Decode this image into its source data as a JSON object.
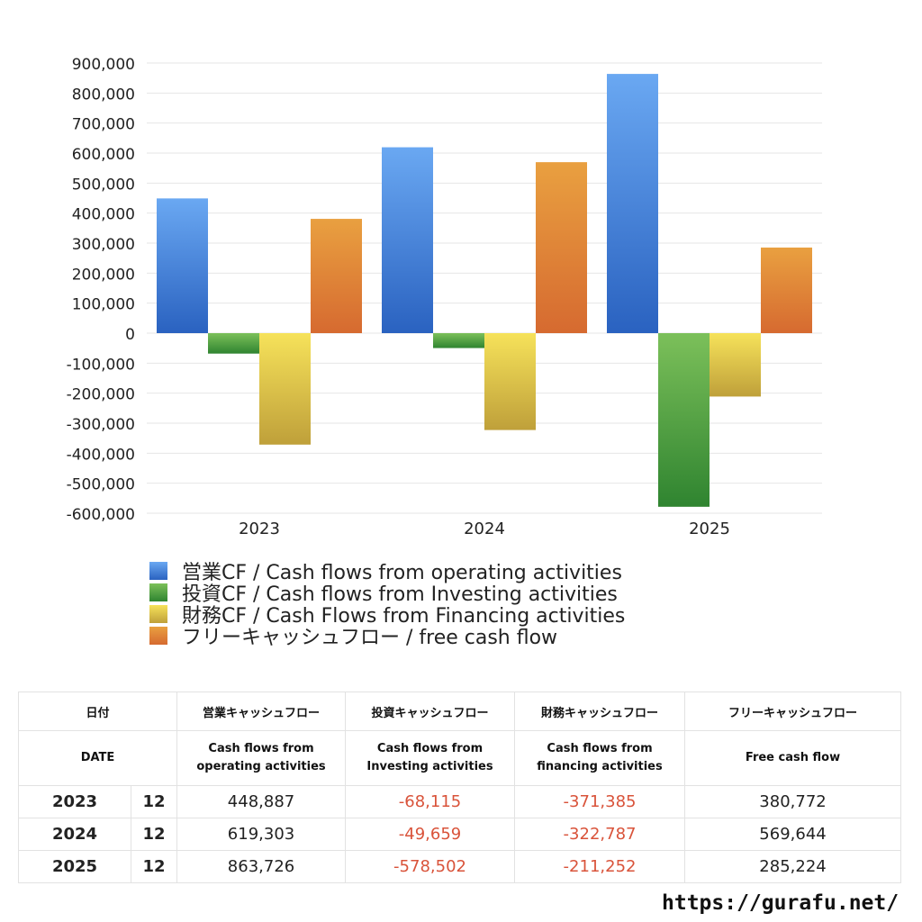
{
  "chart_data": {
    "type": "bar",
    "title": "",
    "xlabel": "",
    "ylabel": "",
    "categories": [
      "2023",
      "2024",
      "2025"
    ],
    "ylim": [
      -600000,
      900000
    ],
    "yticks": [
      900000,
      800000,
      700000,
      600000,
      500000,
      400000,
      300000,
      200000,
      100000,
      0,
      -100000,
      -200000,
      -300000,
      -400000,
      -500000,
      -600000
    ],
    "ytick_labels": [
      "900,000",
      "800,000",
      "700,000",
      "600,000",
      "500,000",
      "400,000",
      "300,000",
      "200,000",
      "100,000",
      "0",
      "-100,000",
      "-200,000",
      "-300,000",
      "-400,000",
      "-500,000",
      "-600,000"
    ],
    "grid": true,
    "legend_position": "bottom",
    "series": [
      {
        "name": "営業CF / Cash flows from operating activities",
        "color": "#3a78d6",
        "values": [
          448887,
          619303,
          863726
        ]
      },
      {
        "name": "投資CF / Cash flows from Investing activities",
        "color": "#4f9e3c",
        "values": [
          -68115,
          -49659,
          -578502
        ]
      },
      {
        "name": "財務CF / Cash Flows from Financing activities",
        "color": "#e6cf45",
        "values": [
          -371385,
          -322787,
          -211252
        ]
      },
      {
        "name": "フリーキャッシュフロー / free cash flow",
        "color": "#e0803a",
        "values": [
          380772,
          569644,
          285224
        ]
      }
    ]
  },
  "table": {
    "header_jp": [
      "日付",
      "営業キャッシュフロー",
      "投資キャッシュフロー",
      "財務キャッシュフロー",
      "フリーキャッシュフロー"
    ],
    "header_en": {
      "date": "DATE",
      "operating": [
        "Cash flows from",
        "operating activities"
      ],
      "investing": [
        "Cash flows from",
        "Investing activities"
      ],
      "financing": [
        "Cash flows from",
        "financing activities"
      ],
      "free": "Free cash flow"
    },
    "rows": [
      {
        "year": "2023",
        "month": "12",
        "operating": "448,887",
        "investing": "-68,115",
        "financing": "-371,385",
        "free": "380,772"
      },
      {
        "year": "2024",
        "month": "12",
        "operating": "619,303",
        "investing": "-49,659",
        "financing": "-322,787",
        "free": "569,644"
      },
      {
        "year": "2025",
        "month": "12",
        "operating": "863,726",
        "investing": "-578,502",
        "financing": "-211,252",
        "free": "285,224"
      }
    ]
  },
  "footer": {
    "url": "https://gurafu.net/"
  }
}
